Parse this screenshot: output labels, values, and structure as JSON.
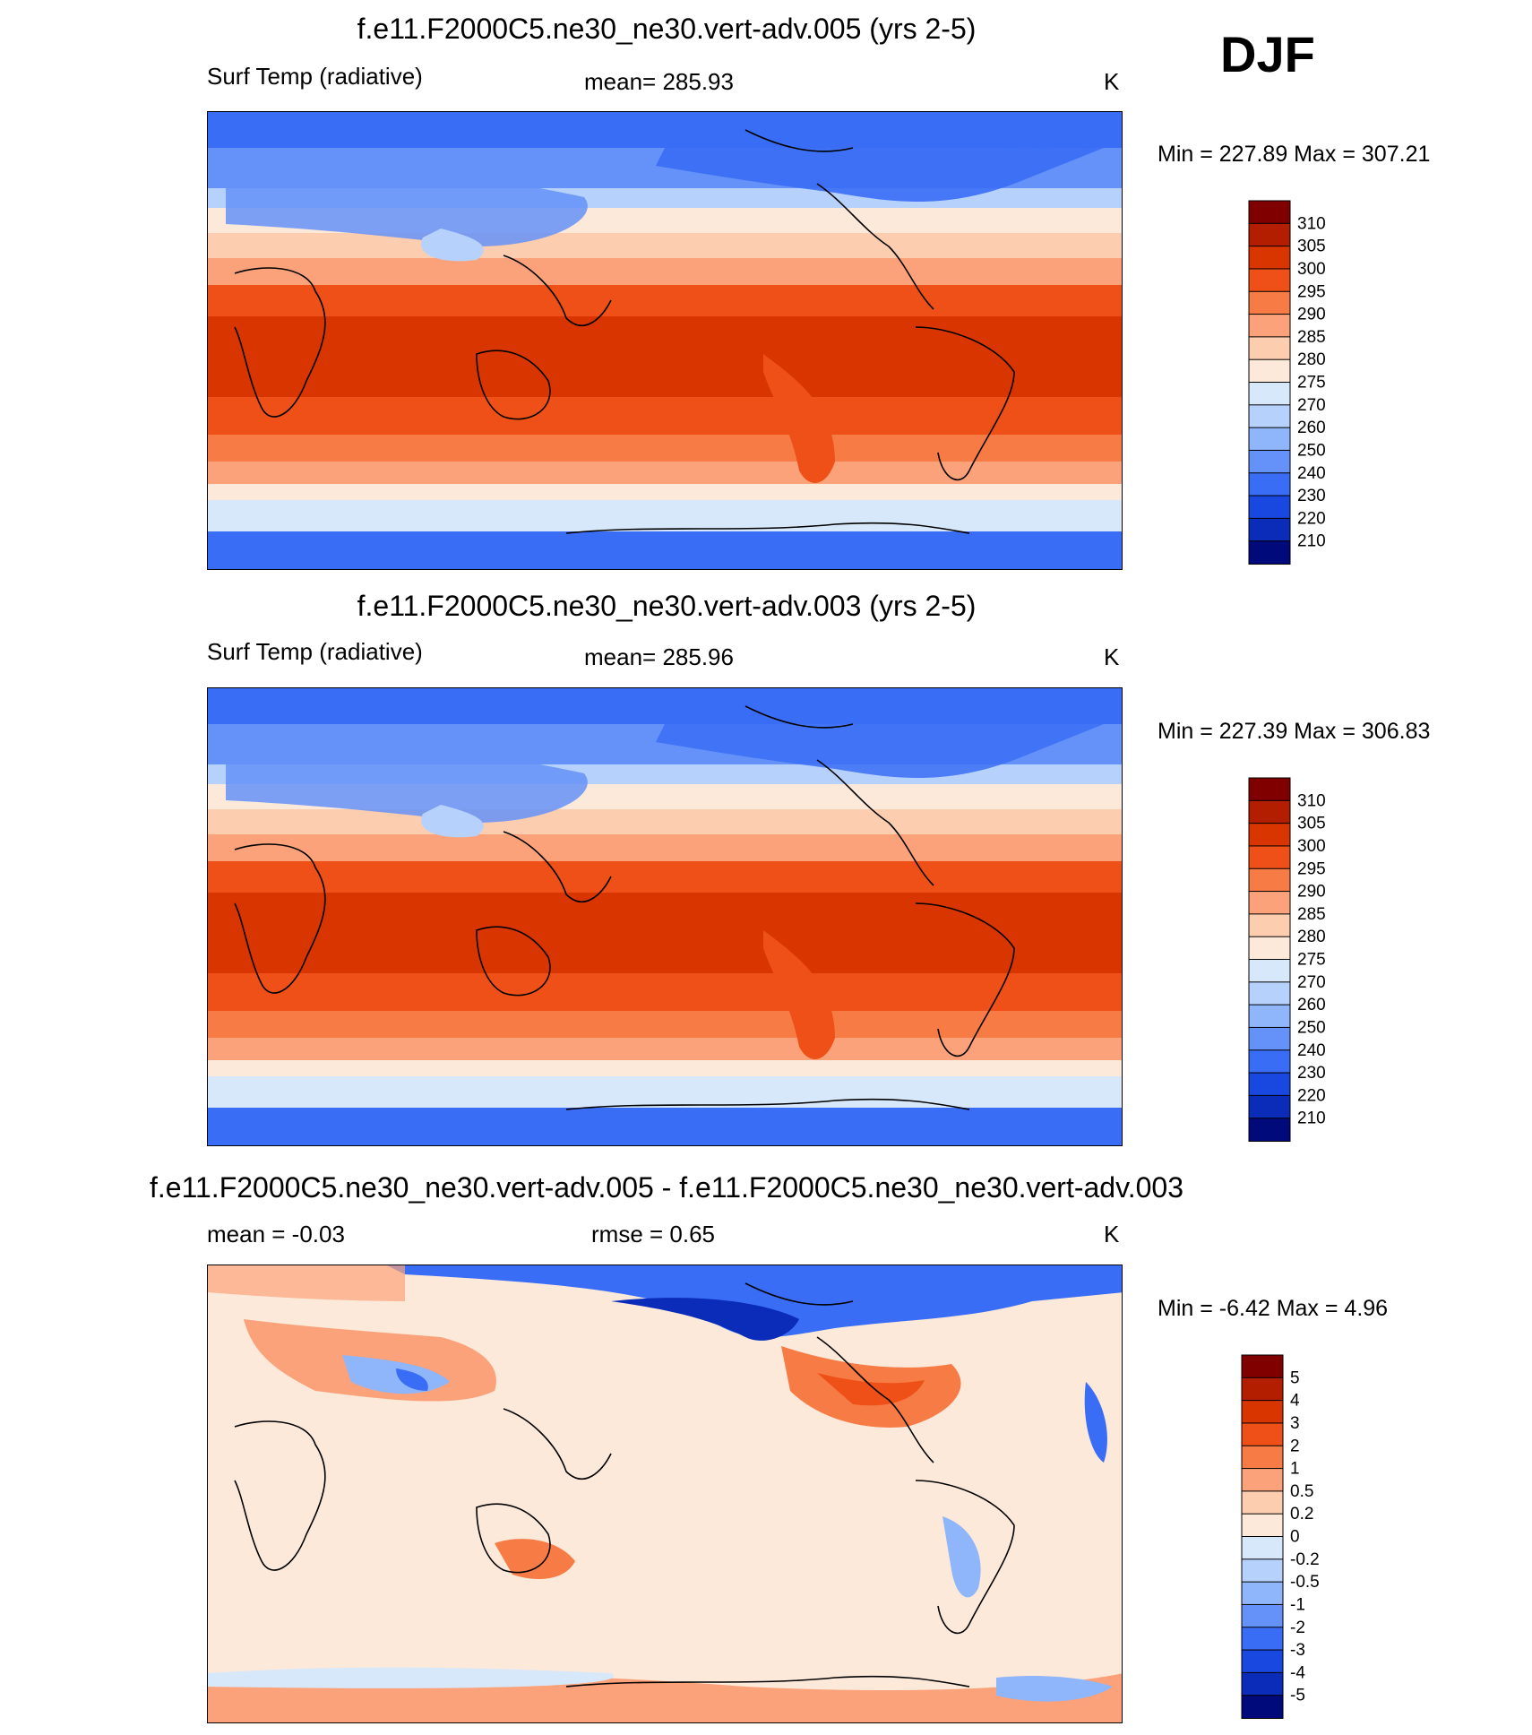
{
  "season": "DJF",
  "panels": [
    {
      "id": "top",
      "title": "f.e11.F2000C5.ne30_ne30.vert-adv.005 (yrs 2-5)",
      "left_label": "Surf Temp (radiative)",
      "center_label": "mean= 285.93",
      "units": "K",
      "minmax": "Min = 227.89 Max = 307.21"
    },
    {
      "id": "middle",
      "title": "f.e11.F2000C5.ne30_ne30.vert-adv.003 (yrs 2-5)",
      "left_label": "Surf Temp (radiative)",
      "center_label": "mean= 285.96",
      "units": "K",
      "minmax": "Min = 227.39 Max = 306.83"
    },
    {
      "id": "diff",
      "title": "f.e11.F2000C5.ne30_ne30.vert-adv.005 - f.e11.F2000C5.ne30_ne30.vert-adv.003",
      "left_label": "mean =  -0.03",
      "center_label": "rmse =   0.65",
      "units": "K",
      "minmax": "Min =  -6.42 Max =   4.96"
    }
  ],
  "chart_data": [
    {
      "type": "heatmap",
      "title": "f.e11.F2000C5.ne30_ne30.vert-adv.005 (yrs 2-5)",
      "variable": "Surf Temp (radiative)",
      "units": "K",
      "mean": 285.93,
      "min": 227.89,
      "max": 307.21,
      "colorbar_levels": [
        "310",
        "305",
        "300",
        "295",
        "290",
        "285",
        "280",
        "275",
        "270",
        "260",
        "250",
        "240",
        "230",
        "220",
        "210"
      ],
      "colorbar_colors": [
        "#800000",
        "#b31d00",
        "#d83500",
        "#ee5018",
        "#f77b45",
        "#fba27a",
        "#fdcdb0",
        "#fde9da",
        "#d8e8fb",
        "#b6d1fb",
        "#8fb5fa",
        "#6592f8",
        "#3a6df5",
        "#1848e0",
        "#0a2cb8",
        "#000a7a"
      ]
    },
    {
      "type": "heatmap",
      "title": "f.e11.F2000C5.ne30_ne30.vert-adv.003 (yrs 2-5)",
      "variable": "Surf Temp (radiative)",
      "units": "K",
      "mean": 285.96,
      "min": 227.39,
      "max": 306.83,
      "colorbar_levels": [
        "310",
        "305",
        "300",
        "295",
        "290",
        "285",
        "280",
        "275",
        "270",
        "260",
        "250",
        "240",
        "230",
        "220",
        "210"
      ],
      "colorbar_colors": [
        "#800000",
        "#b31d00",
        "#d83500",
        "#ee5018",
        "#f77b45",
        "#fba27a",
        "#fdcdb0",
        "#fde9da",
        "#d8e8fb",
        "#b6d1fb",
        "#8fb5fa",
        "#6592f8",
        "#3a6df5",
        "#1848e0",
        "#0a2cb8",
        "#000a7a"
      ]
    },
    {
      "type": "heatmap",
      "title": "f.e11.F2000C5.ne30_ne30.vert-adv.005 - f.e11.F2000C5.ne30_ne30.vert-adv.003",
      "units": "K",
      "mean": -0.03,
      "rmse": 0.65,
      "min": -6.42,
      "max": 4.96,
      "colorbar_levels": [
        "5",
        "4",
        "3",
        "2",
        "1",
        "0.5",
        "0.2",
        "0",
        "-0.2",
        "-0.5",
        "-1",
        "-2",
        "-3",
        "-4",
        "-5"
      ],
      "colorbar_colors": [
        "#800000",
        "#b31d00",
        "#d83500",
        "#ee5018",
        "#f77b45",
        "#fba27a",
        "#fdcdb0",
        "#fde9da",
        "#d8e8fb",
        "#b6d1fb",
        "#8fb5fa",
        "#6592f8",
        "#3a6df5",
        "#1848e0",
        "#0a2cb8",
        "#000a7a"
      ]
    }
  ]
}
